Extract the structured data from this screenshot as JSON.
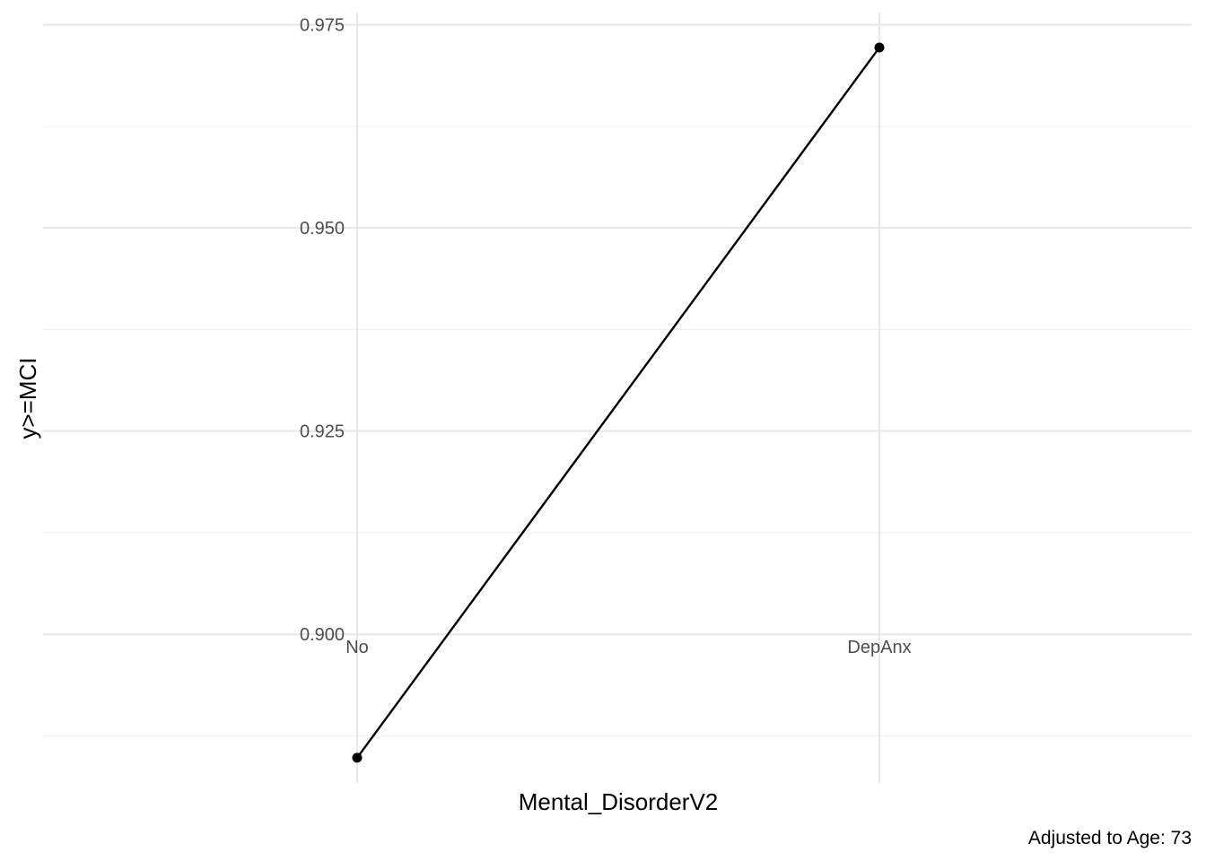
{
  "chart_data": {
    "type": "line",
    "categories": [
      "No",
      "DepAnx"
    ],
    "series": [
      {
        "values": [
          0.8848,
          0.9722
        ]
      }
    ],
    "xlabel": "Mental_DisorderV2",
    "ylabel": "y>=MCI",
    "caption": "Adjusted to Age: 73",
    "yticks": [
      0.9,
      0.925,
      0.95,
      0.975
    ],
    "ytick_labels": [
      "0.900",
      "0.925",
      "0.950",
      "0.975"
    ],
    "ylim": [
      0.8817,
      0.9765
    ],
    "grid": true,
    "line_color": "#000000",
    "grid_color": "#e8e8e8"
  }
}
